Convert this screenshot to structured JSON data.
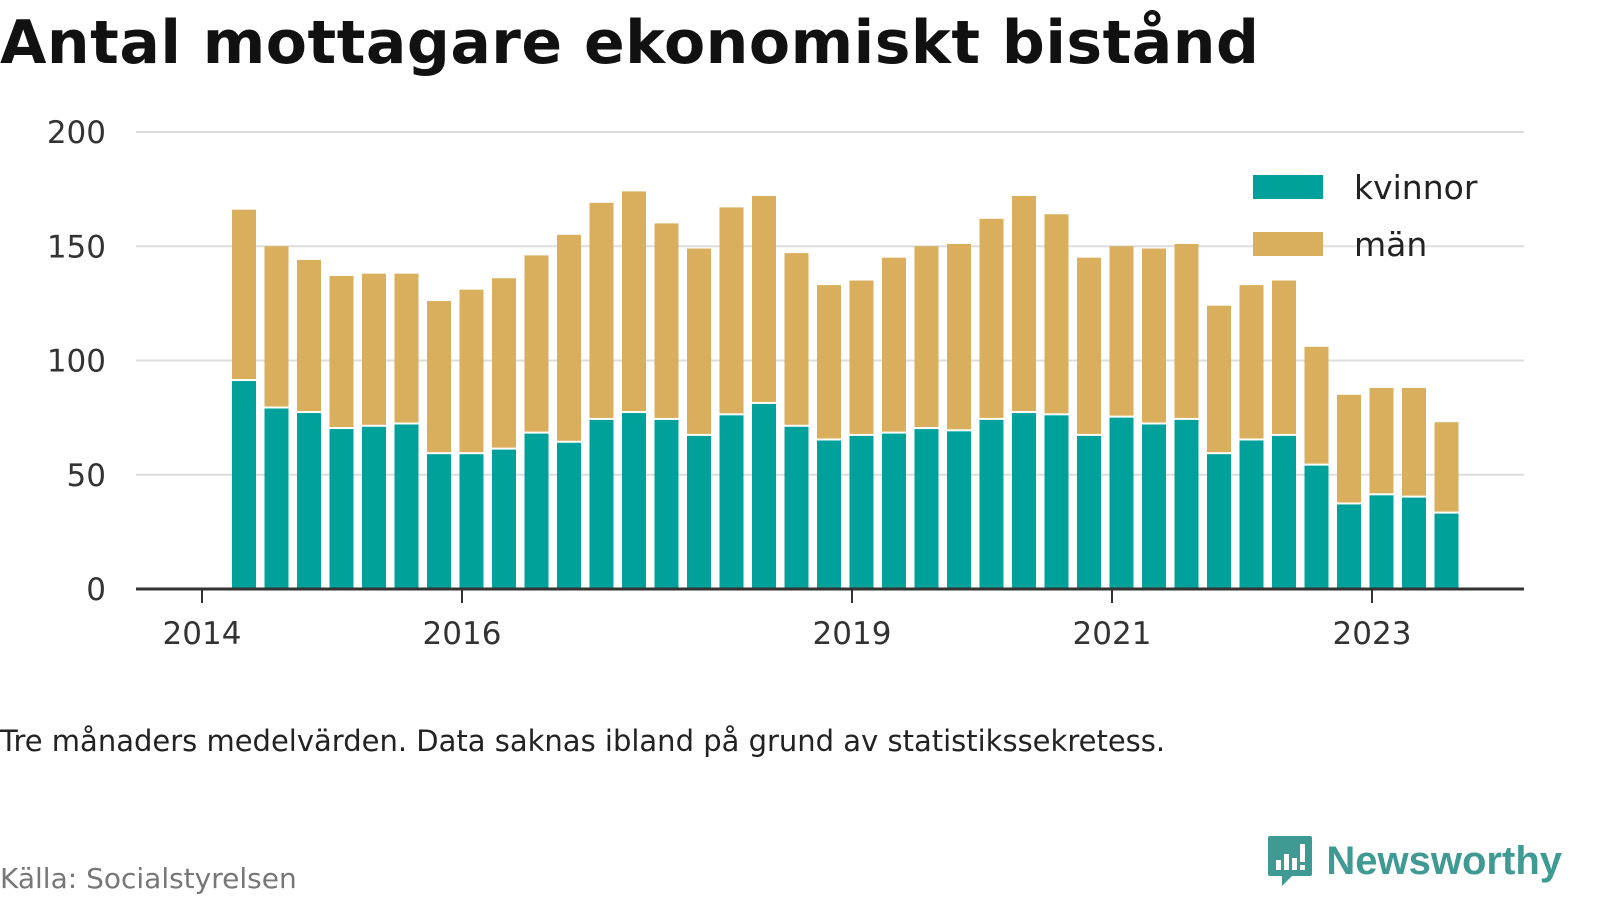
{
  "title": "Antal mottagare ekonomiskt bistånd",
  "note": "Tre månaders medelvärden. Data saknas ibland på grund av statistikssekretess.",
  "source": "Källa: Socialstyrelsen",
  "brand": "Newsworthy",
  "colors": {
    "kvinnor": "#00a19a",
    "man": "#d9ae5c",
    "grid": "#dddddd",
    "axis": "#333333",
    "brand": "#3e9a92"
  },
  "chart_data": {
    "type": "bar",
    "stacked": true,
    "x_ticks": [
      "2014",
      "2016",
      "2019",
      "2021",
      "2023"
    ],
    "y_ticks": [
      0,
      50,
      100,
      150,
      200
    ],
    "ylim": [
      0,
      200
    ],
    "grid": true,
    "legend_position": "top-right",
    "categories": [
      "2014-Q2",
      "2014-Q3",
      "2014-Q4",
      "2015-Q1",
      "2015-Q2",
      "2015-Q3",
      "2015-Q4",
      "2016-Q1",
      "2016-Q2",
      "2016-Q3",
      "2016-Q4",
      "2017-Q1",
      "2017-Q2",
      "2017-Q3",
      "2017-Q4",
      "2018-Q1",
      "2018-Q2",
      "2018-Q3",
      "2018-Q4",
      "2019-Q1",
      "2019-Q2",
      "2019-Q3",
      "2019-Q4",
      "2020-Q1",
      "2020-Q2",
      "2020-Q3",
      "2020-Q4",
      "2021-Q1",
      "2021-Q2",
      "2021-Q3",
      "2021-Q4",
      "2022-Q1",
      "2022-Q2",
      "2022-Q3",
      "2022-Q4",
      "2023-Q1",
      "2023-Q2",
      "2023-Q3"
    ],
    "series": [
      {
        "name": "kvinnor",
        "values": [
          91,
          79,
          77,
          70,
          71,
          72,
          59,
          59,
          61,
          68,
          64,
          74,
          77,
          74,
          67,
          76,
          81,
          71,
          65,
          67,
          68,
          70,
          69,
          74,
          77,
          76,
          67,
          75,
          72,
          74,
          59,
          65,
          67,
          54,
          37,
          41,
          40,
          33
        ]
      },
      {
        "name": "män",
        "values": [
          75,
          71,
          67,
          67,
          67,
          66,
          67,
          72,
          75,
          78,
          91,
          95,
          97,
          86,
          82,
          91,
          91,
          76,
          68,
          68,
          77,
          80,
          82,
          88,
          95,
          88,
          78,
          75,
          77,
          77,
          65,
          68,
          68,
          52,
          48,
          47,
          48,
          40
        ]
      }
    ]
  }
}
